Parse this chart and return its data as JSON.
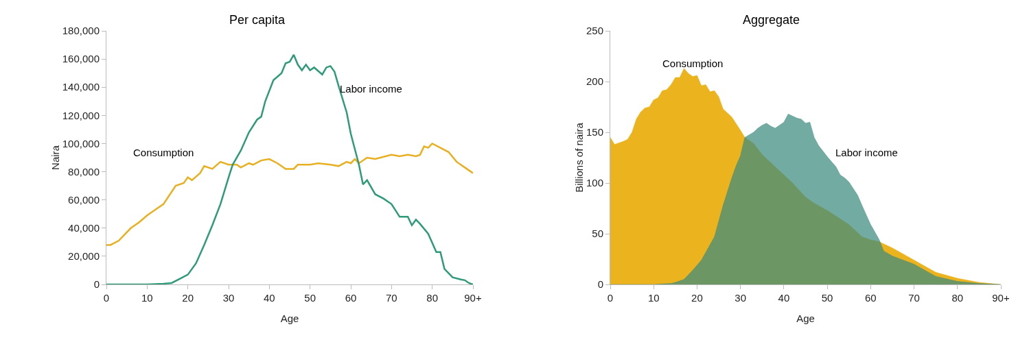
{
  "chart_data": [
    {
      "type": "line",
      "title": "Per capita",
      "xlabel": "Age",
      "ylabel": "Naira",
      "xlim": [
        0,
        90
      ],
      "xticks": [
        0,
        10,
        20,
        30,
        40,
        50,
        60,
        70,
        80,
        {
          "value": 90,
          "label": "90+"
        }
      ],
      "ylim": [
        0,
        180000
      ],
      "yticks": [
        0,
        {
          "value": 20000,
          "label": "20,000"
        },
        {
          "value": 40000,
          "label": "40,000"
        },
        {
          "value": 60000,
          "label": "60,000"
        },
        {
          "value": 80000,
          "label": "80,000"
        },
        {
          "value": 100000,
          "label": "100,000"
        },
        {
          "value": 120000,
          "label": "120,000"
        },
        {
          "value": 140000,
          "label": "140,000"
        },
        {
          "value": 160000,
          "label": "160,000"
        },
        {
          "value": 180000,
          "label": "180,000"
        }
      ],
      "grid": false,
      "marker": "none",
      "line_style": "solid",
      "series": [
        {
          "name": "Consumption",
          "color": "#e8b020",
          "x": [
            0,
            1,
            3,
            6,
            8,
            10,
            12,
            14,
            17,
            19,
            20,
            21,
            23,
            24,
            26,
            28,
            30,
            32,
            33,
            35,
            36,
            38,
            40,
            42,
            44,
            46,
            47,
            50,
            52,
            55,
            57,
            59,
            60,
            61,
            62,
            64,
            66,
            70,
            72,
            74,
            76,
            77,
            78,
            79,
            80,
            82,
            84,
            86,
            88,
            90
          ],
          "values": [
            28000,
            28000,
            31000,
            40000,
            44000,
            49000,
            53000,
            57000,
            70000,
            72000,
            76000,
            74000,
            79000,
            84000,
            82000,
            87000,
            85000,
            85000,
            83000,
            86000,
            85000,
            88000,
            89000,
            86000,
            82000,
            82000,
            85000,
            85000,
            86000,
            85000,
            84000,
            87000,
            86000,
            89000,
            86000,
            90000,
            89000,
            92000,
            91000,
            92000,
            91000,
            92000,
            98000,
            97000,
            100000,
            97000,
            94000,
            87000,
            83000,
            79000
          ]
        },
        {
          "name": "Labor income",
          "color": "#2e9a7a",
          "x": [
            0,
            5,
            10,
            14,
            16,
            17,
            18,
            20,
            22,
            24,
            26,
            28,
            30,
            31,
            33,
            35,
            37,
            38,
            39,
            41,
            43,
            44,
            45,
            46,
            47,
            48,
            49,
            50,
            51,
            53,
            54,
            55,
            56,
            57,
            59,
            60,
            62,
            63,
            64,
            66,
            68,
            70,
            72,
            74,
            75,
            76,
            77,
            79,
            81,
            82,
            83,
            85,
            87,
            88,
            89,
            90
          ],
          "values": [
            0,
            0,
            0,
            500,
            1000,
            2500,
            4000,
            7000,
            15000,
            28000,
            42000,
            57000,
            76000,
            85000,
            95000,
            108000,
            117000,
            119000,
            130000,
            145000,
            150000,
            157000,
            158000,
            163000,
            156000,
            152000,
            156000,
            152000,
            154000,
            149000,
            154000,
            155000,
            151000,
            141000,
            122000,
            107000,
            85000,
            71000,
            74000,
            64000,
            61000,
            57000,
            48000,
            48000,
            42000,
            46000,
            43000,
            36000,
            23000,
            23000,
            11000,
            5000,
            3500,
            3000,
            1000,
            0
          ]
        }
      ]
    },
    {
      "type": "area",
      "title": "Aggregate",
      "xlabel": "Age",
      "ylabel": "Billions of naira",
      "xlim": [
        0,
        90
      ],
      "xticks": [
        0,
        10,
        20,
        30,
        40,
        50,
        60,
        70,
        80,
        {
          "value": 90,
          "label": "90+"
        }
      ],
      "ylim": [
        0,
        250
      ],
      "yticks": [
        0,
        50,
        100,
        150,
        200,
        250
      ],
      "grid": false,
      "series": [
        {
          "name": "Consumption",
          "color": "#ebb31e",
          "x": [
            0,
            1,
            3,
            4,
            5,
            6,
            7,
            8,
            9,
            10,
            11,
            12,
            13,
            14,
            15,
            16,
            17,
            18,
            19,
            20,
            21,
            22,
            23,
            24,
            25,
            26,
            28,
            30,
            31,
            33,
            35,
            37,
            39,
            42,
            45,
            47,
            50,
            55,
            58,
            60,
            62,
            65,
            70,
            75,
            80,
            85,
            90
          ],
          "values": [
            145,
            138,
            141,
            143,
            150,
            163,
            170,
            174,
            175,
            182,
            184,
            191,
            192,
            197,
            204,
            204,
            213,
            208,
            205,
            206,
            196,
            197,
            190,
            191,
            185,
            173,
            165,
            152,
            145,
            139,
            128,
            120,
            112,
            100,
            86,
            80,
            73,
            59,
            47,
            44,
            42,
            36,
            24,
            12,
            6,
            2,
            0
          ]
        },
        {
          "name": "Labor income",
          "color": "#3a8a7e",
          "x": [
            0,
            10,
            14,
            15,
            17,
            19,
            21,
            24,
            26,
            28,
            29,
            30,
            31,
            33,
            34,
            35,
            36,
            37,
            38,
            40,
            41,
            42,
            43,
            44,
            45,
            46,
            47,
            48,
            50,
            51,
            52,
            53,
            54,
            55,
            57,
            58,
            60,
            62,
            63,
            65,
            70,
            75,
            80,
            85,
            90
          ],
          "values": [
            0,
            0,
            1,
            2,
            5,
            14,
            24,
            47,
            78,
            105,
            117,
            127,
            145,
            150,
            154,
            157,
            159,
            156,
            154,
            160,
            168,
            166,
            164,
            163,
            159,
            160,
            145,
            137,
            126,
            121,
            116,
            108,
            105,
            101,
            88,
            78,
            59,
            44,
            33,
            28,
            20,
            8,
            3,
            1,
            0
          ]
        }
      ]
    }
  ]
}
